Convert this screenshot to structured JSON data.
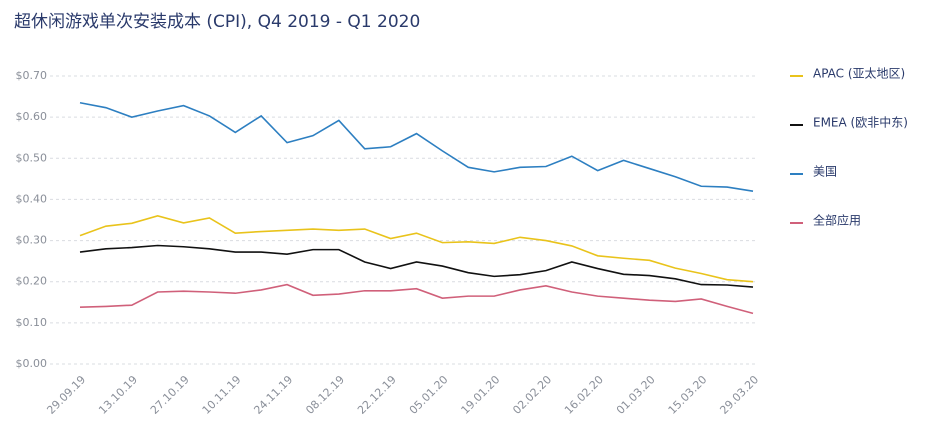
{
  "chart_data": {
    "type": "line",
    "title": "超休闲游戏单次安装成本 (CPI), Q4 2019 - Q1 2020",
    "categories": [
      "29.09.19",
      null,
      "13.10.19",
      null,
      "27.10.19",
      null,
      "10.11.19",
      null,
      "24.11.19",
      null,
      "08.12.19",
      null,
      "22.12.19",
      null,
      "05.01.20",
      null,
      "19.01.20",
      null,
      "02.02.20",
      null,
      "16.02.20",
      null,
      "01.03.20",
      null,
      "15.03.20",
      null,
      "29.03.20"
    ],
    "series": [
      {
        "name": "APAC (亚太地区)",
        "color": "#e9c31b",
        "values": [
          0.312,
          0.335,
          0.342,
          0.36,
          0.343,
          0.355,
          0.318,
          0.322,
          0.325,
          0.328,
          0.325,
          0.328,
          0.305,
          0.318,
          0.295,
          0.297,
          0.293,
          0.308,
          0.3,
          0.287,
          0.263,
          0.257,
          0.252,
          0.233,
          0.22,
          0.205,
          0.2
        ]
      },
      {
        "name": "EMEA (欧非中东)",
        "color": "#111111",
        "values": [
          0.272,
          0.28,
          0.283,
          0.288,
          0.285,
          0.28,
          0.272,
          0.272,
          0.267,
          0.278,
          0.278,
          0.248,
          0.232,
          0.248,
          0.238,
          0.222,
          0.213,
          0.217,
          0.227,
          0.248,
          0.232,
          0.218,
          0.215,
          0.207,
          0.193,
          0.192,
          0.187
        ]
      },
      {
        "name": "美国",
        "color": "#2d7fc1",
        "values": [
          0.635,
          0.623,
          0.6,
          0.615,
          0.628,
          0.603,
          0.563,
          0.603,
          0.538,
          0.555,
          0.592,
          0.523,
          0.528,
          0.56,
          0.518,
          0.478,
          0.467,
          0.478,
          0.48,
          0.505,
          0.47,
          0.495,
          0.475,
          0.455,
          0.432,
          0.43,
          0.42
        ]
      },
      {
        "name": "全部应用",
        "color": "#d0607a",
        "values": [
          0.138,
          0.14,
          0.143,
          0.175,
          0.177,
          0.175,
          0.172,
          0.18,
          0.193,
          0.167,
          0.17,
          0.178,
          0.178,
          0.183,
          0.16,
          0.165,
          0.165,
          0.18,
          0.19,
          0.175,
          0.165,
          0.16,
          0.155,
          0.152,
          0.158,
          0.14,
          0.123
        ]
      }
    ],
    "ylim": [
      0,
      0.7
    ],
    "yticks": [
      {
        "value": 0,
        "label": "$0.00"
      },
      {
        "value": 0.1,
        "label": "$0.10"
      },
      {
        "value": 0.2,
        "label": "$0.20"
      },
      {
        "value": 0.3,
        "label": "$0.30"
      },
      {
        "value": 0.4,
        "label": "$0.40"
      },
      {
        "value": 0.5,
        "label": "$0.50"
      },
      {
        "value": 0.6,
        "label": "$0.60"
      },
      {
        "value": 0.7,
        "label": "$0.70"
      }
    ],
    "grid": true,
    "legend": "right"
  }
}
